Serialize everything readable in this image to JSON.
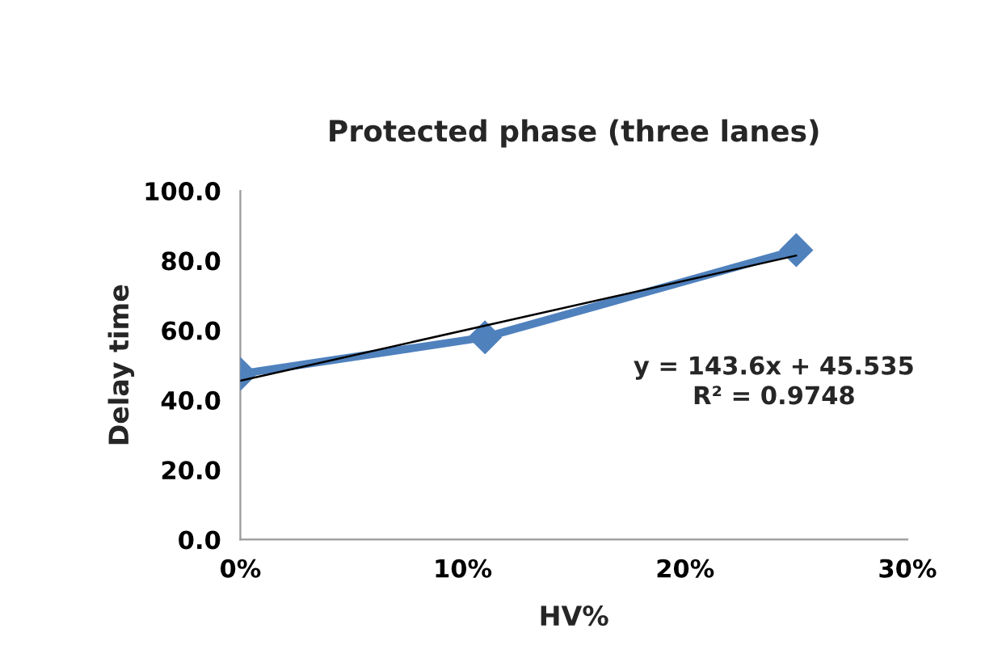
{
  "chart_data": {
    "type": "line",
    "title": "Protected phase (three lanes)",
    "xlabel": "HV%",
    "ylabel": "Delay time",
    "x": [
      0,
      0.11,
      0.25
    ],
    "series": [
      {
        "color": "#4f81bd",
        "values": [
          47.5,
          58.0,
          83.0
        ],
        "marker": "diamond"
      },
      {
        "type": "line",
        "color": "#000000",
        "x": [
          0,
          0.25
        ],
        "values": [
          45.535,
          81.435
        ],
        "marker": "none"
      }
    ],
    "xlim": [
      0,
      0.3
    ],
    "xticks": [
      {
        "value": 0,
        "label": "0%"
      },
      {
        "value": 0.1,
        "label": "10%"
      },
      {
        "value": 0.2,
        "label": "20%"
      },
      {
        "value": 0.3,
        "label": "30%"
      }
    ],
    "ylim": [
      0,
      100
    ],
    "yticks": [
      {
        "value": 0,
        "label": "0.0"
      },
      {
        "value": 20,
        "label": "20.0"
      },
      {
        "value": 40,
        "label": "40.0"
      },
      {
        "value": 60,
        "label": "60.0"
      },
      {
        "value": 80,
        "label": "80.0"
      },
      {
        "value": 100,
        "label": "100.0"
      }
    ],
    "grid": false,
    "legend": false,
    "annotations": [
      "y = 143.6x + 45.535\nR² = 0.9748"
    ]
  }
}
